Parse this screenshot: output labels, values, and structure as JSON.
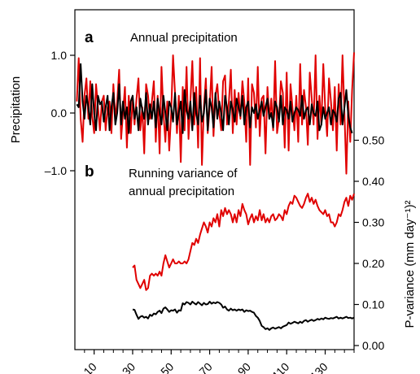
{
  "chart_data": [
    {
      "panel": "a",
      "type": "line",
      "title": "Annual precipitation",
      "ylabel": "Precipitation",
      "ylim": [
        -1.5,
        1.5
      ],
      "yticks": [
        "1.0",
        "0.0",
        "–1.0"
      ],
      "ytick_values": [
        1.0,
        0.0,
        -1.0
      ],
      "xlim": [
        0,
        145
      ],
      "series": [
        {
          "color": "#e00000",
          "x_start": 1,
          "values": [
            0.2,
            0.95,
            -0.1,
            -0.5,
            0.3,
            0.6,
            -0.1,
            0.55,
            -0.05,
            -0.35,
            0.5,
            0.1,
            -0.3,
            0.2,
            0.3,
            -0.3,
            0.1,
            0.2,
            -0.35,
            0.5,
            -0.1,
            0.2,
            0.75,
            -0.45,
            0.0,
            0.45,
            -0.6,
            0.3,
            -0.35,
            0.25,
            -0.2,
            0.25,
            0.6,
            -0.3,
            0.1,
            -0.7,
            0.5,
            0.3,
            -0.1,
            0.2,
            0.55,
            -0.5,
            0.3,
            -0.7,
            0.8,
            0.0,
            -0.5,
            0.2,
            -0.65,
            0.0,
            1.0,
            0.35,
            -0.35,
            0.3,
            -0.85,
            0.45,
            -0.3,
            0.8,
            -0.45,
            0.2,
            0.9,
            -0.2,
            0.45,
            -0.6,
            0.95,
            -0.9,
            0.1,
            0.6,
            -0.35,
            0.1,
            0.8,
            -0.4,
            0.3,
            0.5,
            0.0,
            -0.3,
            0.55,
            0.65,
            -0.2,
            0.2,
            0.75,
            -0.35,
            0.4,
            -0.2,
            0.35,
            -0.1,
            0.55,
            0.2,
            -0.5,
            0.6,
            -0.9,
            0.5,
            0.35,
            -0.25,
            0.8,
            -0.4,
            0.25,
            0.3,
            -0.7,
            0.45,
            -0.1,
            0.25,
            -0.3,
            0.9,
            -0.35,
            -0.1,
            0.55,
            0.35,
            -0.6,
            0.7,
            -0.65,
            0.5,
            0.1,
            -0.3,
            0.3,
            -0.5,
            0.85,
            -0.2,
            0.4,
            0.1,
            -0.55,
            0.7,
            0.25,
            -0.2,
            1.0,
            -0.45,
            0.3,
            -0.2,
            0.85,
            0.1,
            -0.4,
            0.6,
            0.2,
            -0.3,
            0.45,
            -0.65,
            0.5,
            -0.2,
            1.0,
            0.0,
            -1.05,
            0.2,
            -0.5,
            0.4,
            1.05
          ]
        },
        {
          "color": "#000000",
          "x_start": 1,
          "values": [
            0.15,
            0.1,
            0.85,
            0.2,
            -0.1,
            0.3,
            0.1,
            -0.2,
            0.5,
            0.0,
            -0.3,
            0.3,
            0.15,
            0.2,
            -0.15,
            0.1,
            0.3,
            -0.3,
            0.1,
            0.35,
            -0.2,
            0.0,
            0.5,
            -0.2,
            0.2,
            -0.1,
            0.1,
            -0.35,
            0.2,
            0.3,
            -0.1,
            0.1,
            -0.3,
            0.25,
            0.05,
            -0.1,
            0.35,
            -0.2,
            0.15,
            -0.1,
            0.2,
            -0.25,
            0.25,
            0.0,
            -0.2,
            0.3,
            0.0,
            -0.3,
            0.2,
            0.1,
            -0.15,
            0.35,
            -0.2,
            0.0,
            0.2,
            -0.35,
            0.4,
            0.05,
            -0.1,
            0.2,
            -0.3,
            0.35,
            0.0,
            -0.2,
            0.3,
            -0.15,
            0.0,
            0.4,
            -0.3,
            0.25,
            0.1,
            -0.25,
            0.35,
            -0.1,
            0.2,
            0.0,
            -0.3,
            0.3,
            0.1,
            -0.2,
            0.2,
            0.05,
            -0.15,
            0.25,
            0.1,
            -0.05,
            0.3,
            -0.2,
            0.1,
            0.2,
            -0.25,
            0.1,
            0.0,
            0.15,
            -0.1,
            0.05,
            0.2,
            -0.05,
            0.1,
            0.25,
            -0.1,
            0.0,
            -0.25,
            0.2,
            0.1,
            -0.15,
            0.3,
            -0.2,
            0.1,
            0.05,
            -0.1,
            0.2,
            -0.15,
            0.0,
            0.1,
            0.05,
            -0.05,
            0.3,
            -0.1,
            0.05,
            0.1,
            -0.2,
            0.15,
            0.0,
            -0.05,
            0.2,
            -0.3,
            -0.2,
            0.1,
            -0.1,
            0.0,
            0.1,
            -0.2,
            0.05,
            0.0,
            -0.15,
            0.25,
            0.35,
            -0.2,
            0.1,
            0.4,
            -0.05,
            -0.25,
            -0.35
          ]
        }
      ]
    },
    {
      "panel": "b",
      "type": "line",
      "title_lines": [
        "Running variance of",
        "annual precipitation"
      ],
      "ylabel": "P-variance (mm day⁻¹)²",
      "ylim": [
        0.0,
        0.55
      ],
      "yticks": [
        "0.00",
        "0.10",
        "0.20",
        "0.30",
        "0.40",
        "0.50"
      ],
      "ytick_values": [
        0.0,
        0.1,
        0.2,
        0.3,
        0.4,
        0.5
      ],
      "xlim": [
        0,
        145
      ],
      "xticks": [
        10,
        30,
        50,
        70,
        90,
        110,
        130
      ],
      "series": [
        {
          "color": "#e00000",
          "x": [
            30,
            31,
            32,
            33,
            34,
            35,
            36,
            37,
            38,
            39,
            40,
            41,
            42,
            43,
            44,
            45,
            46,
            47,
            48,
            49,
            50,
            51,
            52,
            53,
            54,
            55,
            56,
            57,
            58,
            59,
            60,
            61,
            62,
            63,
            64,
            65,
            66,
            67,
            68,
            69,
            70,
            71,
            72,
            73,
            74,
            75,
            76,
            77,
            78,
            79,
            80,
            81,
            82,
            83,
            84,
            85,
            86,
            87,
            88,
            89,
            90,
            91,
            92,
            93,
            94,
            95,
            96,
            97,
            98,
            99,
            100,
            101,
            102,
            103,
            104,
            105,
            106,
            107,
            108,
            109,
            110,
            111,
            112,
            113,
            114,
            115,
            116,
            117,
            118,
            119,
            120,
            121,
            122,
            123,
            124,
            125,
            126,
            127,
            128,
            129,
            130,
            131,
            132,
            133,
            134,
            135,
            136,
            137,
            138,
            139,
            140,
            141,
            142,
            143,
            144,
            145
          ],
          "values": [
            0.19,
            0.195,
            0.16,
            0.15,
            0.14,
            0.15,
            0.16,
            0.135,
            0.14,
            0.17,
            0.175,
            0.17,
            0.175,
            0.17,
            0.18,
            0.17,
            0.2,
            0.22,
            0.205,
            0.19,
            0.2,
            0.21,
            0.2,
            0.2,
            0.205,
            0.2,
            0.2,
            0.205,
            0.2,
            0.21,
            0.23,
            0.25,
            0.245,
            0.26,
            0.25,
            0.27,
            0.285,
            0.3,
            0.29,
            0.275,
            0.3,
            0.29,
            0.31,
            0.3,
            0.32,
            0.29,
            0.33,
            0.315,
            0.335,
            0.32,
            0.33,
            0.32,
            0.3,
            0.32,
            0.3,
            0.33,
            0.315,
            0.345,
            0.33,
            0.32,
            0.295,
            0.31,
            0.32,
            0.3,
            0.315,
            0.305,
            0.33,
            0.305,
            0.32,
            0.3,
            0.31,
            0.3,
            0.315,
            0.32,
            0.305,
            0.31,
            0.32,
            0.315,
            0.305,
            0.33,
            0.32,
            0.34,
            0.35,
            0.345,
            0.365,
            0.36,
            0.35,
            0.34,
            0.335,
            0.345,
            0.36,
            0.37,
            0.35,
            0.36,
            0.345,
            0.355,
            0.34,
            0.33,
            0.325,
            0.32,
            0.33,
            0.315,
            0.32,
            0.3,
            0.3,
            0.29,
            0.3,
            0.32,
            0.315,
            0.33,
            0.35,
            0.36,
            0.34,
            0.365,
            0.355,
            0.37
          ]
        },
        {
          "color": "#000000",
          "x": [
            30,
            31,
            32,
            33,
            34,
            35,
            36,
            37,
            38,
            39,
            40,
            41,
            42,
            43,
            44,
            45,
            46,
            47,
            48,
            49,
            50,
            51,
            52,
            53,
            54,
            55,
            56,
            57,
            58,
            59,
            60,
            61,
            62,
            63,
            64,
            65,
            66,
            67,
            68,
            69,
            70,
            71,
            72,
            73,
            74,
            75,
            76,
            77,
            78,
            79,
            80,
            81,
            82,
            83,
            84,
            85,
            86,
            87,
            88,
            89,
            90,
            91,
            92,
            93,
            94,
            95,
            96,
            97,
            98,
            99,
            100,
            101,
            102,
            103,
            104,
            105,
            106,
            107,
            108,
            109,
            110,
            111,
            112,
            113,
            114,
            115,
            116,
            117,
            118,
            119,
            120,
            121,
            122,
            123,
            124,
            125,
            126,
            127,
            128,
            129,
            130,
            131,
            132,
            133,
            134,
            135,
            136,
            137,
            138,
            139,
            140,
            141,
            142,
            143,
            144,
            145
          ],
          "values": [
            0.088,
            0.087,
            0.075,
            0.065,
            0.07,
            0.072,
            0.068,
            0.07,
            0.066,
            0.075,
            0.072,
            0.078,
            0.076,
            0.082,
            0.085,
            0.079,
            0.09,
            0.093,
            0.088,
            0.082,
            0.086,
            0.085,
            0.088,
            0.08,
            0.086,
            0.085,
            0.103,
            0.1,
            0.106,
            0.104,
            0.1,
            0.107,
            0.103,
            0.1,
            0.106,
            0.102,
            0.098,
            0.104,
            0.1,
            0.101,
            0.107,
            0.102,
            0.105,
            0.103,
            0.106,
            0.104,
            0.1,
            0.092,
            0.095,
            0.088,
            0.085,
            0.09,
            0.086,
            0.088,
            0.085,
            0.088,
            0.086,
            0.088,
            0.082,
            0.086,
            0.084,
            0.085,
            0.082,
            0.08,
            0.072,
            0.068,
            0.06,
            0.048,
            0.045,
            0.04,
            0.042,
            0.038,
            0.042,
            0.044,
            0.041,
            0.043,
            0.045,
            0.042,
            0.046,
            0.048,
            0.05,
            0.056,
            0.053,
            0.055,
            0.058,
            0.056,
            0.054,
            0.058,
            0.055,
            0.06,
            0.062,
            0.058,
            0.061,
            0.063,
            0.06,
            0.062,
            0.065,
            0.063,
            0.066,
            0.064,
            0.068,
            0.066,
            0.065,
            0.067,
            0.066,
            0.068,
            0.07,
            0.066,
            0.068,
            0.066,
            0.068,
            0.07,
            0.067,
            0.068,
            0.066,
            0.068
          ]
        }
      ]
    }
  ]
}
